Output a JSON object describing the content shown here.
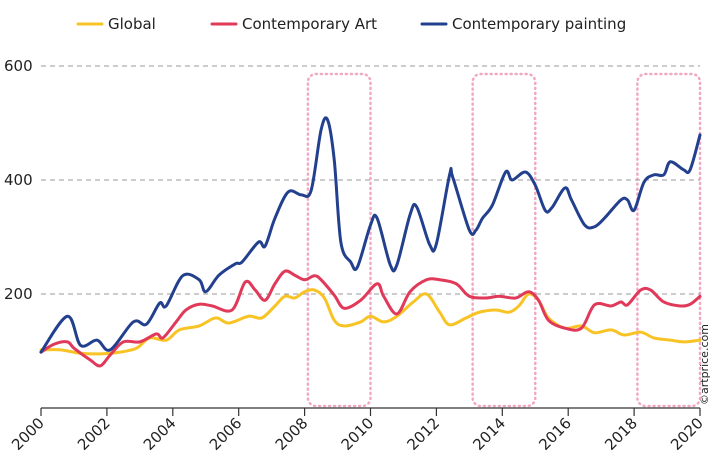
{
  "chart_data": {
    "type": "line",
    "credit": "©artprice.com",
    "xlim": [
      2000,
      2020
    ],
    "ylim": [
      0,
      600
    ],
    "xticks": [
      2000,
      2002,
      2004,
      2006,
      2008,
      2010,
      2012,
      2014,
      2016,
      2018,
      2020
    ],
    "yticks": [
      200,
      400,
      600
    ],
    "grid": true,
    "highlight_ranges": [
      [
        2008.1,
        2010
      ],
      [
        2013.1,
        2015
      ],
      [
        2018.1,
        2020
      ]
    ],
    "highlight_color": "#f2a7c3",
    "series": [
      {
        "name": "Global",
        "color": "#f7c325",
        "x": [
          2000.0,
          2000.6,
          2001.2,
          2001.8,
          2002.4,
          2002.9,
          2003.3,
          2003.8,
          2004.2,
          2004.8,
          2005.3,
          2005.7,
          2006.3,
          2006.7,
          2007.1,
          2007.4,
          2007.7,
          2008.0,
          2008.3,
          2008.6,
          2008.9,
          2009.2,
          2009.7,
          2010.0,
          2010.4,
          2010.8,
          2011.3,
          2011.7,
          2012.1,
          2012.4,
          2012.9,
          2013.3,
          2013.8,
          2014.2,
          2014.5,
          2014.8,
          2015.1,
          2015.4,
          2015.9,
          2016.4,
          2016.8,
          2017.3,
          2017.7,
          2018.2,
          2018.6,
          2019.1,
          2019.5,
          2020.0
        ],
        "values": [
          102,
          102,
          96,
          95,
          98,
          105,
          123,
          119,
          137,
          144,
          158,
          149,
          161,
          158,
          179,
          196,
          193,
          204,
          207,
          193,
          154,
          144,
          151,
          161,
          151,
          161,
          186,
          200,
          168,
          146,
          158,
          168,
          172,
          168,
          179,
          200,
          189,
          158,
          140,
          144,
          132,
          137,
          128,
          133,
          123,
          119,
          116,
          119
        ]
      },
      {
        "name": "Contemporary Art",
        "color": "#e0395a",
        "x": [
          2000.0,
          2000.4,
          2000.8,
          2001.0,
          2001.5,
          2001.8,
          2002.1,
          2002.5,
          2003.0,
          2003.5,
          2003.7,
          2004.1,
          2004.4,
          2004.8,
          2005.2,
          2005.8,
          2006.2,
          2006.5,
          2006.8,
          2007.1,
          2007.4,
          2007.7,
          2008.0,
          2008.3,
          2008.5,
          2008.9,
          2009.2,
          2009.7,
          2010.2,
          2010.4,
          2010.8,
          2011.2,
          2011.7,
          2012.1,
          2012.6,
          2013.0,
          2013.5,
          2013.9,
          2014.4,
          2014.8,
          2015.1,
          2015.4,
          2015.9,
          2016.4,
          2016.8,
          2017.3,
          2017.6,
          2017.8,
          2018.2,
          2018.5,
          2018.9,
          2019.4,
          2019.7,
          2020.0
        ],
        "values": [
          98,
          112,
          116,
          105,
          84,
          74,
          93,
          116,
          116,
          130,
          123,
          151,
          172,
          182,
          179,
          172,
          221,
          207,
          189,
          218,
          240,
          233,
          225,
          232,
          225,
          198,
          175,
          189,
          218,
          196,
          165,
          204,
          225,
          225,
          218,
          196,
          193,
          196,
          193,
          204,
          189,
          154,
          140,
          140,
          181,
          179,
          186,
          181,
          207,
          207,
          186,
          179,
          182,
          196
        ]
      },
      {
        "name": "Contemporary painting",
        "color": "#23408e",
        "x": [
          2000.0,
          2000.8,
          2001.2,
          2001.7,
          2002.1,
          2002.8,
          2003.2,
          2003.6,
          2003.8,
          2004.3,
          2004.8,
          2005.0,
          2005.4,
          2005.9,
          2006.1,
          2006.6,
          2006.8,
          2007.1,
          2007.5,
          2007.9,
          2008.2,
          2008.5,
          2008.7,
          2008.9,
          2009.1,
          2009.4,
          2009.6,
          2010.0,
          2010.2,
          2010.6,
          2010.8,
          2011.2,
          2011.4,
          2011.8,
          2012.0,
          2012.4,
          2012.5,
          2013.0,
          2013.2,
          2013.4,
          2013.7,
          2014.1,
          2014.3,
          2014.7,
          2015.0,
          2015.3,
          2015.5,
          2015.9,
          2016.1,
          2016.5,
          2016.8,
          2017.1,
          2017.6,
          2017.8,
          2018.0,
          2018.3,
          2018.6,
          2018.9,
          2019.1,
          2019.5,
          2019.7,
          2020.0
        ],
        "values": [
          98,
          161,
          110,
          119,
          102,
          151,
          147,
          184,
          179,
          232,
          225,
          204,
          233,
          253,
          256,
          291,
          284,
          333,
          379,
          374,
          382,
          488,
          505,
          435,
          291,
          256,
          247,
          321,
          333,
          251,
          251,
          339,
          353,
          286,
          288,
          409,
          404,
          312,
          312,
          333,
          356,
          414,
          400,
          414,
          391,
          347,
          351,
          386,
          365,
          321,
          318,
          333,
          365,
          365,
          347,
          396,
          409,
          409,
          432,
          418,
          418,
          479
        ]
      }
    ]
  }
}
